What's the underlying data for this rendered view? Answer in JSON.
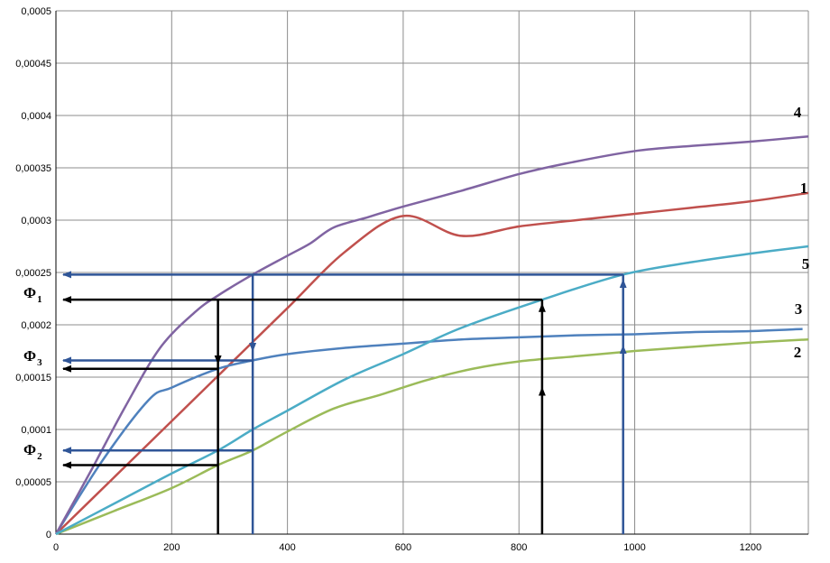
{
  "chart_data": {
    "type": "line",
    "title": "",
    "xlabel": "",
    "ylabel": "",
    "xlim": [
      0,
      1300
    ],
    "ylim": [
      0,
      0.0005
    ],
    "grid": true,
    "x_ticks": [
      "0",
      "200",
      "400",
      "600",
      "800",
      "1000",
      "1200"
    ],
    "y_ticks": [
      "0",
      "0,00005",
      "0,0001",
      "0,00015",
      "0,0002",
      "0,00025",
      "0,0003",
      "0,00035",
      "0,0004",
      "0,00045",
      "0,0005"
    ],
    "series": [
      {
        "name": "1",
        "color": "#c0504d",
        "points": [
          [
            0,
            0
          ],
          [
            100,
            5.4e-05
          ],
          [
            200,
            0.000108
          ],
          [
            300,
            0.000162
          ],
          [
            400,
            0.000216
          ],
          [
            500,
            0.00027
          ],
          [
            600,
            0.000304
          ],
          [
            700,
            0.000285
          ],
          [
            800,
            0.000294
          ],
          [
            900,
            0.0003
          ],
          [
            1000,
            0.000306
          ],
          [
            1100,
            0.000312
          ],
          [
            1200,
            0.000318
          ],
          [
            1300,
            0.000326
          ]
        ]
      },
      {
        "name": "2",
        "color": "#9bbb59",
        "points": [
          [
            0,
            0
          ],
          [
            100,
            2.2e-05
          ],
          [
            200,
            4.4e-05
          ],
          [
            280,
            6.6e-05
          ],
          [
            340,
            8e-05
          ],
          [
            400,
            9.8e-05
          ],
          [
            480,
            0.00012
          ],
          [
            560,
            0.000133
          ],
          [
            640,
            0.000147
          ],
          [
            720,
            0.000158
          ],
          [
            800,
            0.000165
          ],
          [
            900,
            0.00017
          ],
          [
            1000,
            0.000175
          ],
          [
            1100,
            0.000179
          ],
          [
            1200,
            0.000183
          ],
          [
            1300,
            0.000186
          ]
        ]
      },
      {
        "name": "3",
        "color": "#4f81bd",
        "points": [
          [
            0,
            0
          ],
          [
            80,
            7e-05
          ],
          [
            160,
            0.000128
          ],
          [
            200,
            0.00014
          ],
          [
            280,
            0.000158
          ],
          [
            340,
            0.000166
          ],
          [
            400,
            0.000172
          ],
          [
            500,
            0.000178
          ],
          [
            600,
            0.000182
          ],
          [
            700,
            0.000186
          ],
          [
            800,
            0.000188
          ],
          [
            900,
            0.00019
          ],
          [
            1000,
            0.000191
          ],
          [
            1100,
            0.000193
          ],
          [
            1200,
            0.000194
          ],
          [
            1290,
            0.000196
          ]
        ]
      },
      {
        "name": "4",
        "color": "#8064a2",
        "points": [
          [
            0,
            0
          ],
          [
            60,
            6e-05
          ],
          [
            120,
            0.000122
          ],
          [
            180,
            0.000178
          ],
          [
            240,
            0.000212
          ],
          [
            280,
            0.000228
          ],
          [
            340,
            0.000248
          ],
          [
            400,
            0.000266
          ],
          [
            440,
            0.000278
          ],
          [
            480,
            0.000293
          ],
          [
            540,
            0.000303
          ],
          [
            600,
            0.000313
          ],
          [
            700,
            0.000328
          ],
          [
            800,
            0.000344
          ],
          [
            880,
            0.000354
          ],
          [
            1000,
            0.000366
          ],
          [
            1100,
            0.000371
          ],
          [
            1200,
            0.000375
          ],
          [
            1300,
            0.00038
          ]
        ]
      },
      {
        "name": "5",
        "color": "#4bacc6",
        "points": [
          [
            0,
            0
          ],
          [
            100,
            2.9e-05
          ],
          [
            200,
            5.8e-05
          ],
          [
            280,
            8e-05
          ],
          [
            340,
            0.0001
          ],
          [
            400,
            0.000118
          ],
          [
            500,
            0.000148
          ],
          [
            600,
            0.000172
          ],
          [
            700,
            0.000197
          ],
          [
            840,
            0.000224
          ],
          [
            980,
            0.000248
          ],
          [
            1100,
            0.00026
          ],
          [
            1200,
            0.000268
          ],
          [
            1300,
            0.000275
          ]
        ]
      }
    ],
    "annotations": {
      "phi1": {
        "name": "Φ",
        "sub": "1",
        "y": 0.000224
      },
      "phi2": {
        "name": "Φ",
        "sub": "2",
        "y": 6.6e-05
      },
      "phi3": {
        "name": "Φ",
        "sub": "3",
        "y": 0.000158
      },
      "blue_horizontal_levels": [
        0.000248,
        0.000166,
        8e-05
      ],
      "black_vertical_x": [
        280,
        840
      ],
      "blue_vertical_x": [
        340,
        980
      ],
      "black_color": "#000000",
      "blue_color": "#2f5597"
    }
  }
}
